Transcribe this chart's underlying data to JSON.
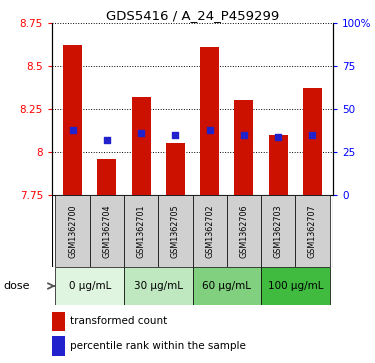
{
  "title": "GDS5416 / A_24_P459299",
  "samples": [
    "GSM1362700",
    "GSM1362704",
    "GSM1362701",
    "GSM1362705",
    "GSM1362702",
    "GSM1362706",
    "GSM1362703",
    "GSM1362707"
  ],
  "bar_values": [
    8.62,
    7.96,
    8.32,
    8.05,
    8.61,
    8.3,
    8.1,
    8.37
  ],
  "percentile_values": [
    8.13,
    8.07,
    8.11,
    8.1,
    8.13,
    8.1,
    8.09,
    8.1
  ],
  "ymin": 7.75,
  "ymax": 8.75,
  "yticks_left": [
    7.75,
    8.0,
    8.25,
    8.5,
    8.75
  ],
  "ytick_labels_left": [
    "7.75",
    "8",
    "8.25",
    "8.5",
    "8.75"
  ],
  "ytick_labels_right": [
    "0",
    "25",
    "50",
    "75",
    "100%"
  ],
  "bar_color": "#cc1100",
  "percentile_color": "#2222cc",
  "dose_groups": [
    {
      "label": "0 μg/mL",
      "indices": [
        0,
        1
      ],
      "color": "#e0f5e0"
    },
    {
      "label": "30 μg/mL",
      "indices": [
        2,
        3
      ],
      "color": "#c0e8c0"
    },
    {
      "label": "60 μg/mL",
      "indices": [
        4,
        5
      ],
      "color": "#80d080"
    },
    {
      "label": "100 μg/mL",
      "indices": [
        6,
        7
      ],
      "color": "#40bb40"
    }
  ],
  "sample_bg_color": "#d0d0d0",
  "bar_width": 0.55,
  "grid_linestyle": "dotted",
  "legend_transformed": "transformed count",
  "legend_percentile": "percentile rank within the sample"
}
